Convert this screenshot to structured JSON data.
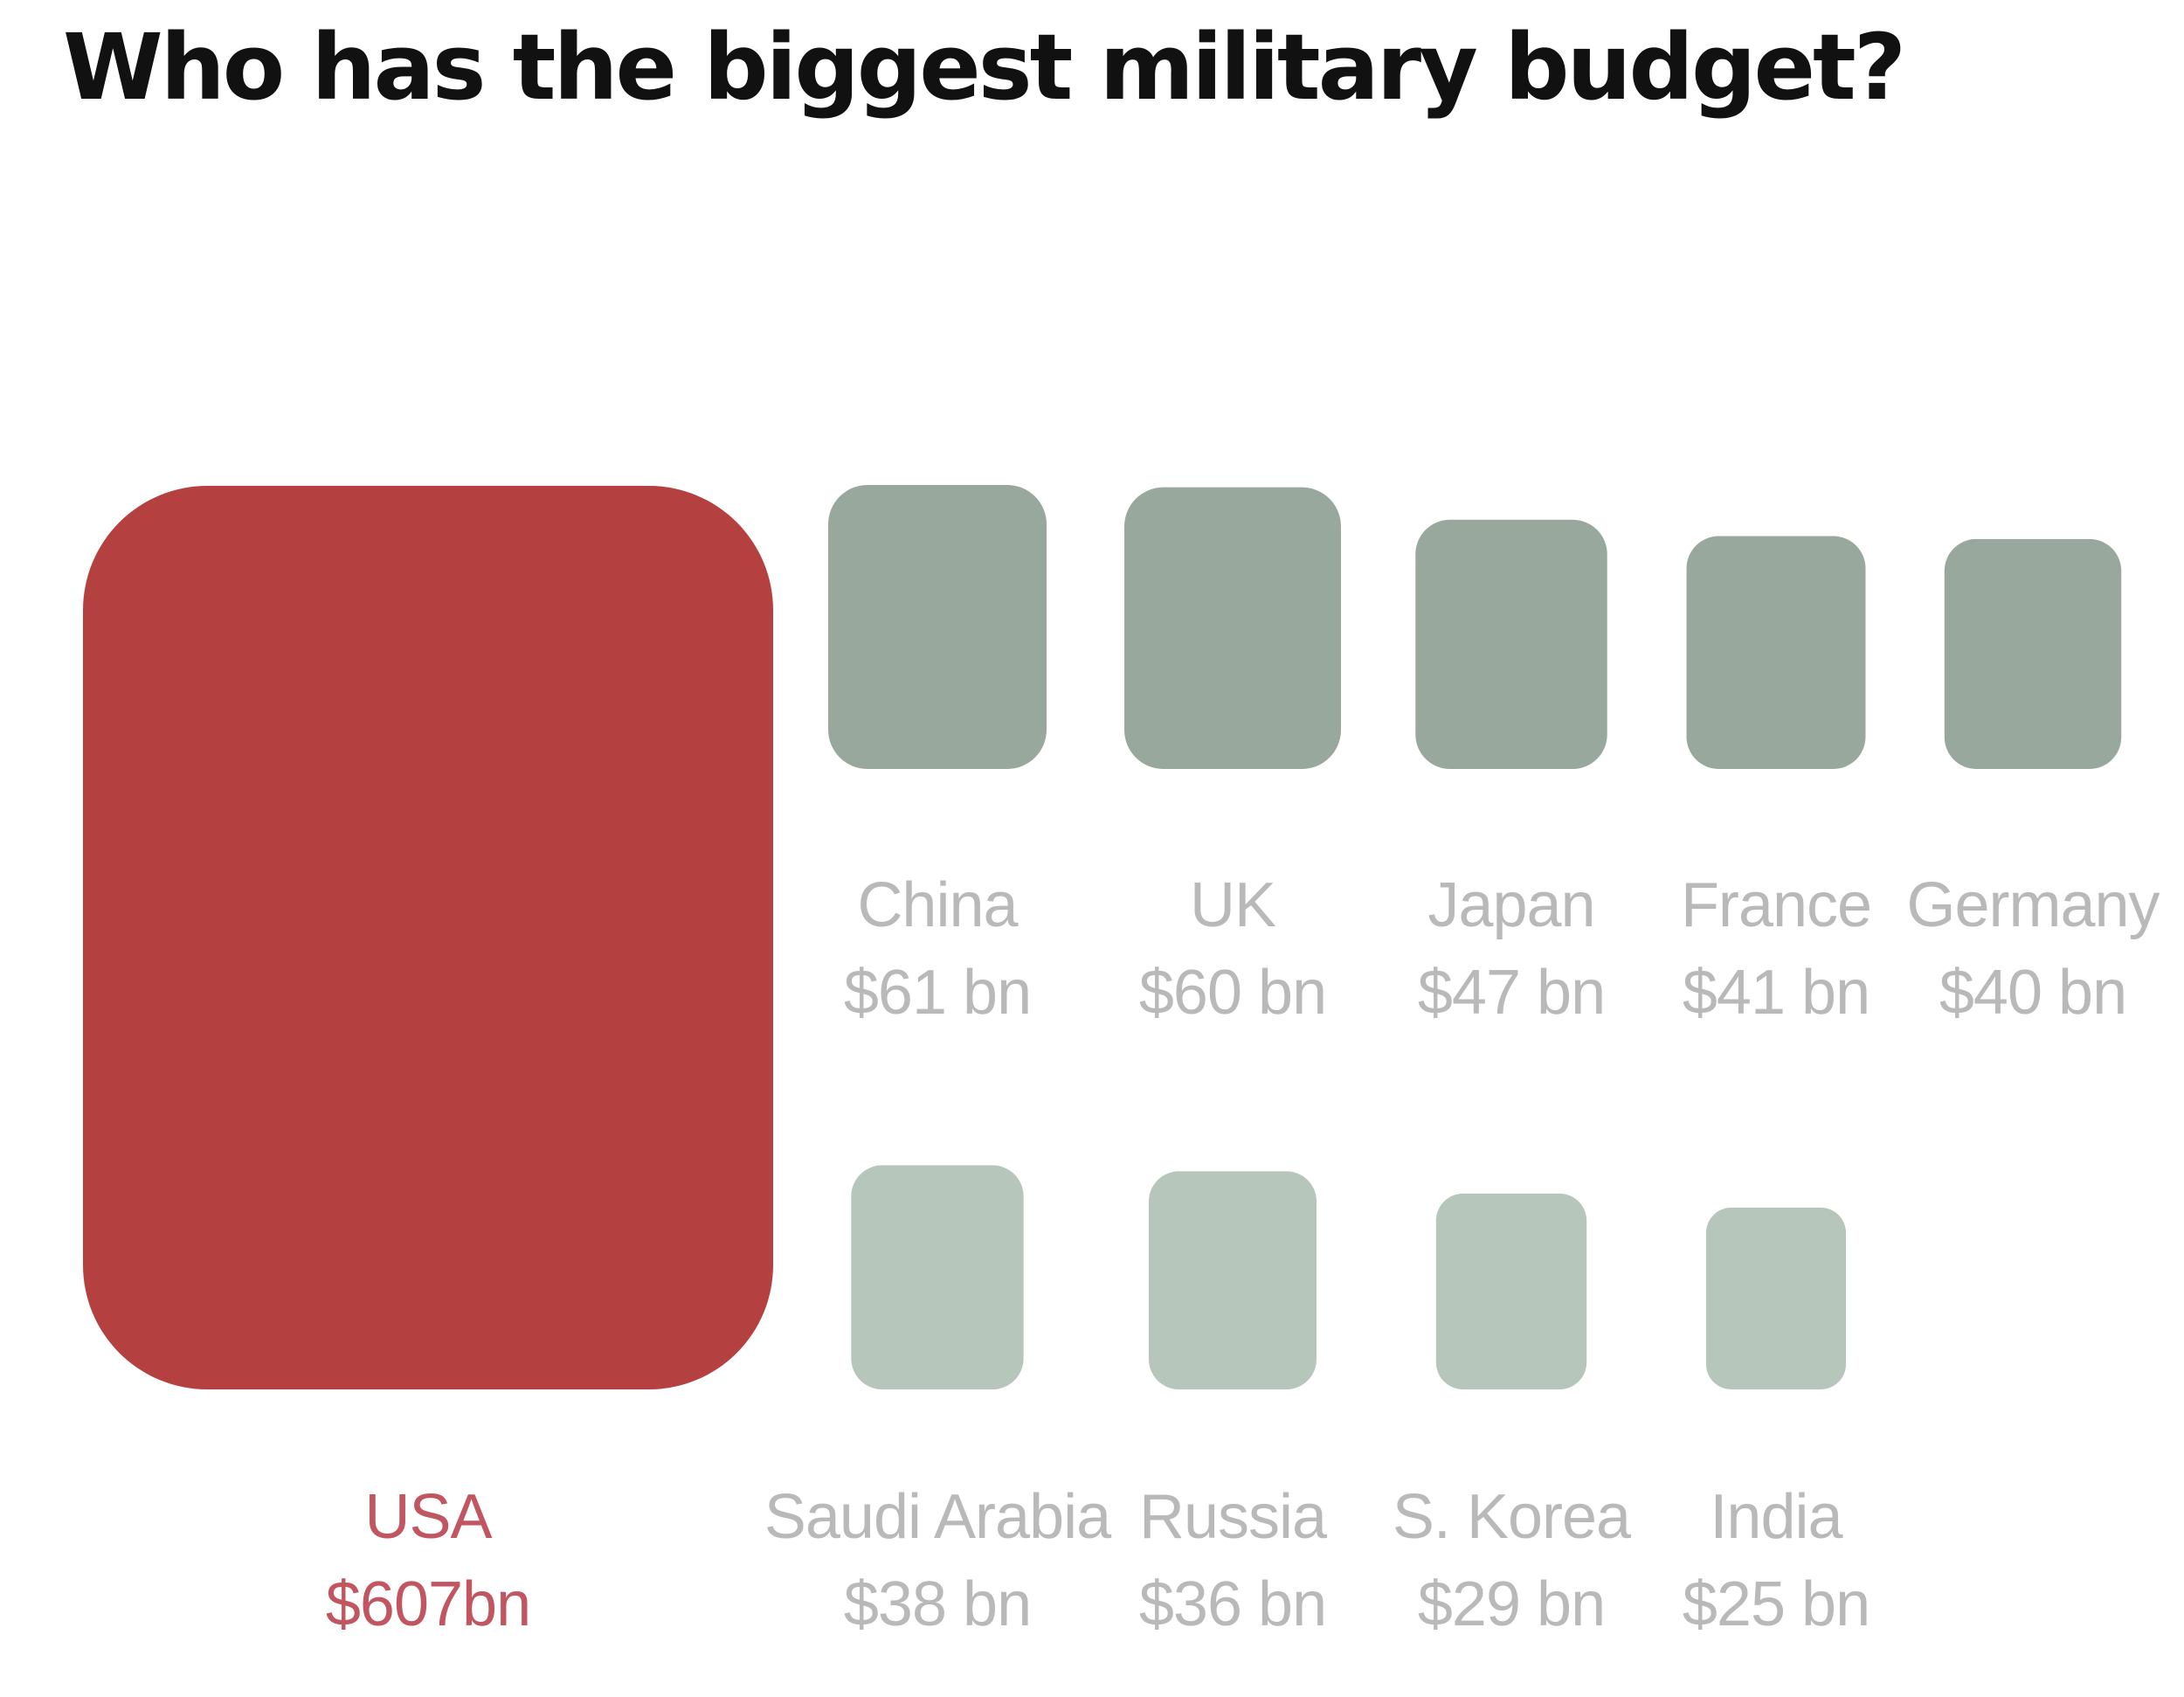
{
  "title": "Who has the biggest military budget?",
  "colors": {
    "highlight": "#b54040",
    "row1": "#99a89c",
    "row2": "#b6c6bb",
    "label_highlight": "#c15560",
    "label_muted": "#b9b9b9"
  },
  "chart_data": {
    "type": "bar",
    "title": "Who has the biggest military budget?",
    "unit": "$ bn",
    "categories": [
      "USA",
      "China",
      "UK",
      "Japan",
      "France",
      "Germany",
      "Saudi Arabia",
      "Russia",
      "S. Korea",
      "India"
    ],
    "values": [
      607,
      61,
      60,
      47,
      41,
      40,
      38,
      36,
      29,
      25
    ],
    "value_labels": [
      "$607bn",
      "$61 bn",
      "$60 bn",
      "$47 bn",
      "$41 bn",
      "$40 bn",
      "$38 bn",
      "$36 bn",
      "$29 bn",
      "$25 bn"
    ],
    "highlight": "USA"
  }
}
